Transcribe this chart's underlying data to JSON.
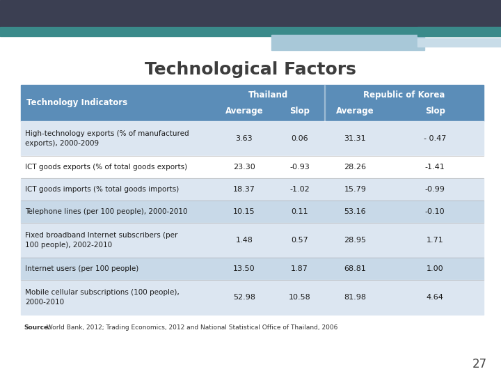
{
  "title": "Technological Factors",
  "title_fontsize": 18,
  "title_fontweight": "bold",
  "title_color": "#3d3d3d",
  "header_bg": "#5b8db8",
  "header_text_color": "#ffffff",
  "row_colors": [
    "#dce6f1",
    "#ffffff",
    "#dce6f1",
    "#c8d9e8",
    "#dce6f1",
    "#c8d9e8",
    "#dce6f1"
  ],
  "source_bold": "Source:",
  "source_rest": " World Bank, 2012; Trading Economics, 2012 and National Statistical Office of Thailand, 2006",
  "page_number": "27",
  "slide_bg": "#ffffff",
  "top_bar_dark": "#3b3f52",
  "top_bar_teal": "#3a8a8a",
  "top_bar_light": "#a8c8d8",
  "rows": [
    [
      "High-technology exports (% of manufactured\nexports), 2000-2009",
      "3.63",
      "0.06",
      "31.31",
      "- 0.47"
    ],
    [
      "ICT goods exports (% of total goods exports)",
      "23.30",
      "-0.93",
      "28.26",
      "-1.41"
    ],
    [
      "ICT goods imports (% total goods imports)",
      "18.37",
      "-1.02",
      "15.79",
      "-0.99"
    ],
    [
      "Telephone lines (per 100 people), 2000-2010",
      "10.15",
      "0.11",
      "53.16",
      "-0.10"
    ],
    [
      "Fixed broadband Internet subscribers (per\n100 people), 2002-2010",
      "1.48",
      "0.57",
      "28.95",
      "1.71"
    ],
    [
      "Internet users (per 100 people)",
      "13.50",
      "1.87",
      "68.81",
      "1.00"
    ],
    [
      "Mobile cellular subscriptions (100 people),\n2000-2010",
      "52.98",
      "10.58",
      "81.98",
      "4.64"
    ]
  ]
}
